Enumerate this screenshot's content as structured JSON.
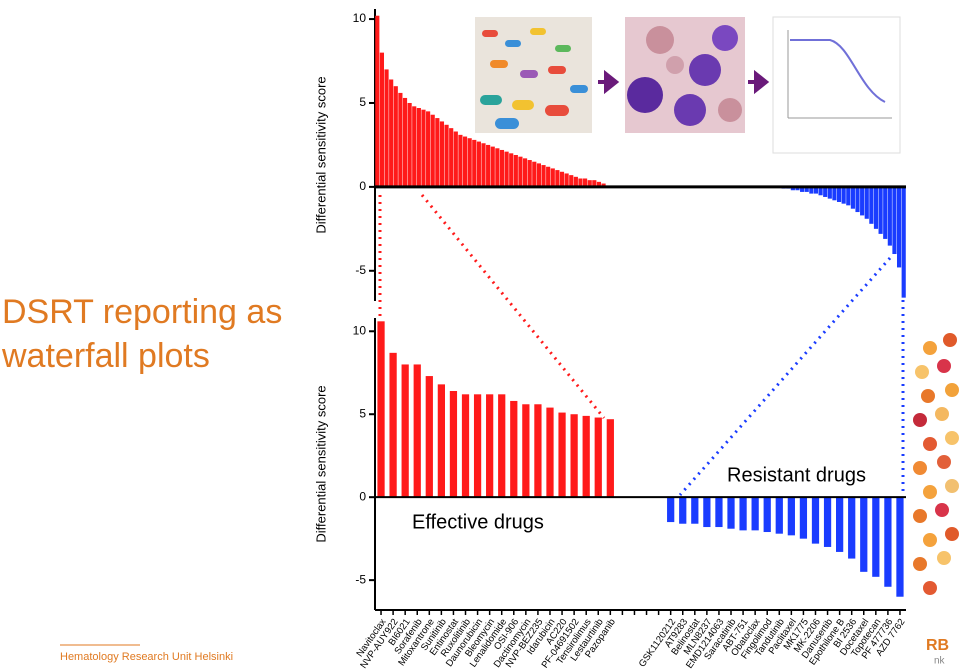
{
  "title_lines": [
    "DSRT reporting as",
    "waterfall plots"
  ],
  "footer": "Hematology Research Unit Helsinki",
  "logo_fragments": [
    "RB",
    "nk"
  ],
  "chart_data": [
    {
      "type": "bar",
      "y_label": "Differential sensitivity score",
      "values": [
        10.2,
        8.0,
        7.0,
        6.4,
        6.0,
        5.6,
        5.3,
        5.0,
        4.8,
        4.7,
        4.6,
        4.5,
        4.3,
        4.1,
        3.9,
        3.7,
        3.5,
        3.3,
        3.1,
        3.0,
        2.9,
        2.8,
        2.7,
        2.6,
        2.5,
        2.4,
        2.3,
        2.2,
        2.1,
        2.0,
        1.9,
        1.8,
        1.7,
        1.6,
        1.5,
        1.4,
        1.3,
        1.2,
        1.1,
        1.0,
        0.9,
        0.8,
        0.7,
        0.6,
        0.5,
        0.5,
        0.4,
        0.4,
        0.3,
        0.2,
        0,
        0,
        0,
        0,
        0,
        0,
        0,
        0,
        0,
        0,
        0,
        0,
        0,
        0,
        0,
        0,
        0,
        0,
        0,
        0,
        0,
        0,
        0,
        0,
        0,
        0,
        0,
        0,
        0,
        0,
        0,
        0,
        0,
        0,
        0,
        0,
        0,
        0,
        -0.1,
        -0.1,
        -0.2,
        -0.2,
        -0.3,
        -0.3,
        -0.4,
        -0.4,
        -0.5,
        -0.6,
        -0.7,
        -0.8,
        -0.9,
        -1.0,
        -1.1,
        -1.3,
        -1.5,
        -1.7,
        -1.9,
        -2.2,
        -2.5,
        -2.8,
        -3.1,
        -3.5,
        -4.0,
        -4.8,
        -6.6
      ],
      "positive_color": "#ff1a1a",
      "negative_color": "#1a3cff",
      "ylim": [
        -6.8,
        10.6
      ],
      "yticks": [
        -5,
        0,
        5,
        10
      ]
    },
    {
      "type": "bar",
      "y_label": "Differential sensitivity score",
      "categories": [
        "Navitoclax",
        "NVP-AUY922",
        "BI6021",
        "Sorafenib",
        "Mitoxantrone",
        "Sunitinib",
        "Entinostat",
        "Ruxolitinib",
        "Daunorubicin",
        "Bleomycin",
        "Lenalidomide",
        "OSI-906",
        "Dactinomycin",
        "NVP-BEZ235",
        "Idarubicin",
        "AC220",
        "PF-04691502",
        "Tensirolimus",
        "Lestaurtinib",
        "Pazopanib",
        null,
        null,
        null,
        null,
        "GSK1120212",
        "AT9283",
        "Belinostat",
        "MLN8237",
        "EMD1214063",
        "Saracatinib",
        "ABT-751",
        "Obatoclax",
        "Fingolimod",
        "Tandutinib",
        "Paclitaxel",
        "MK1775",
        "MK-2206",
        "Danusertib",
        "Epothilone B",
        "BI 2536",
        "Docetaxel",
        "Topotecan",
        "PF 477736",
        "AZD 7762"
      ],
      "values": [
        10.6,
        8.7,
        8.0,
        8.0,
        7.3,
        6.8,
        6.4,
        6.2,
        6.2,
        6.2,
        6.2,
        5.8,
        5.6,
        5.6,
        5.4,
        5.1,
        5.0,
        4.9,
        4.8,
        4.7,
        null,
        null,
        null,
        null,
        -1.5,
        -1.6,
        -1.6,
        -1.8,
        -1.8,
        -1.9,
        -2.0,
        -2.0,
        -2.1,
        -2.2,
        -2.3,
        -2.5,
        -2.8,
        -3.0,
        -3.3,
        -3.7,
        -4.5,
        -4.8,
        -5.4,
        -6.0
      ],
      "annotations": [
        "Effective drugs",
        "Resistant drugs"
      ],
      "positive_color": "#ff1a1a",
      "negative_color": "#1a3cff",
      "ylim": [
        -6.8,
        10.8
      ],
      "yticks": [
        -5,
        0,
        5,
        10
      ]
    }
  ]
}
